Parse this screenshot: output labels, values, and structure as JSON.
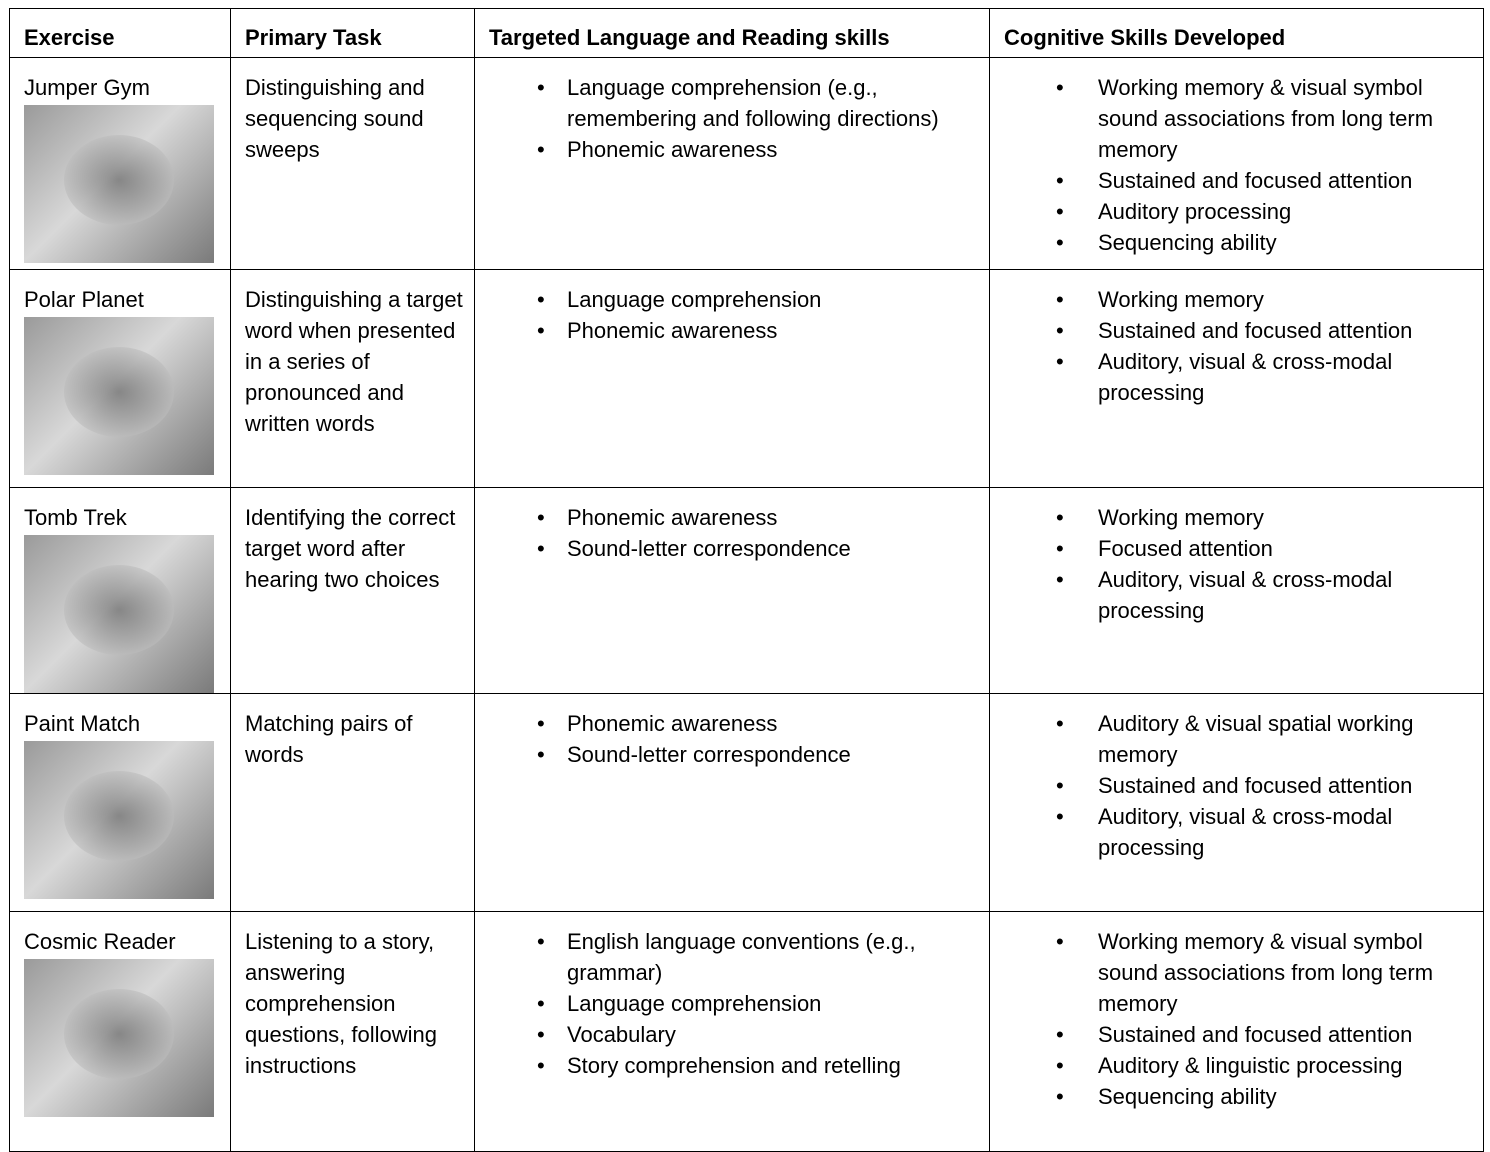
{
  "table": {
    "header": [
      "Exercise",
      "Primary Task",
      "Targeted Language and Reading skills",
      "Cognitive Skills Developed"
    ],
    "rows": [
      {
        "exercise": "Jumper Gym",
        "task": "Distinguishing and sequencing sound sweeps",
        "language_skills": [
          "Language comprehension (e.g., remembering and following directions)",
          "Phonemic awareness"
        ],
        "cognitive_skills": [
          "Working memory & visual symbol sound associations from long term memory",
          "Sustained and focused attention",
          "Auditory processing",
          "Sequencing ability"
        ]
      },
      {
        "exercise": "Polar Planet",
        "task": "Distinguishing a target word when presented in a series of pronounced and written words",
        "language_skills": [
          "Language comprehension",
          "Phonemic awareness"
        ],
        "cognitive_skills": [
          "Working memory",
          "Sustained and focused attention",
          "Auditory, visual & cross-modal processing"
        ]
      },
      {
        "exercise": "Tomb Trek",
        "task": "Identifying the correct target word after hearing two choices",
        "language_skills": [
          "Phonemic awareness",
          "Sound-letter correspondence"
        ],
        "cognitive_skills": [
          "Working memory",
          "Focused attention",
          "Auditory, visual & cross-modal processing"
        ]
      },
      {
        "exercise": "Paint Match",
        "task": "Matching pairs of words",
        "language_skills": [
          "Phonemic awareness",
          "Sound-letter correspondence"
        ],
        "cognitive_skills": [
          "Auditory & visual spatial working memory",
          "Sustained and focused attention",
          "Auditory, visual & cross-modal processing"
        ]
      },
      {
        "exercise": "Cosmic Reader",
        "task": "Listening to a story, answering comprehension questions, following instructions",
        "language_skills": [
          "English language conventions (e.g., grammar)",
          "Language comprehension",
          "Vocabulary",
          "Story comprehension and retelling"
        ],
        "cognitive_skills": [
          "Working memory & visual symbol sound associations from long term memory",
          "Sustained and focused attention",
          "Auditory & linguistic processing",
          "Sequencing ability"
        ]
      }
    ]
  }
}
